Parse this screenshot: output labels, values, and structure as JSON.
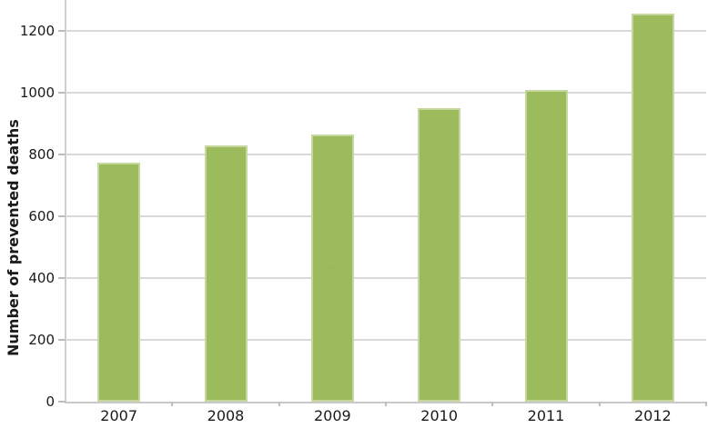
{
  "chart_data": {
    "type": "bar",
    "title": "",
    "ylabel": "Number of prevented deaths",
    "xlabel": "",
    "categories": [
      "2007",
      "2008",
      "2009",
      "2010",
      "2011",
      "2012"
    ],
    "values": [
      775,
      830,
      865,
      950,
      1010,
      1255
    ],
    "yticks": [
      0,
      200,
      400,
      600,
      800,
      1000,
      1200
    ],
    "ylim": [
      0,
      1300
    ],
    "grid": "horizontal",
    "legend_position": "none",
    "colors": {
      "bar_fill": "#9cbb5c",
      "bar_border": "#c5d79d",
      "bar_dot_texture": "rgba(90,120,40,0.10)",
      "gridline": "#d9d9d9",
      "tick_mark": "#bdbdbd",
      "axis_line": "#cccccc",
      "text": "#1a1a1a",
      "background": "#ffffff"
    }
  }
}
